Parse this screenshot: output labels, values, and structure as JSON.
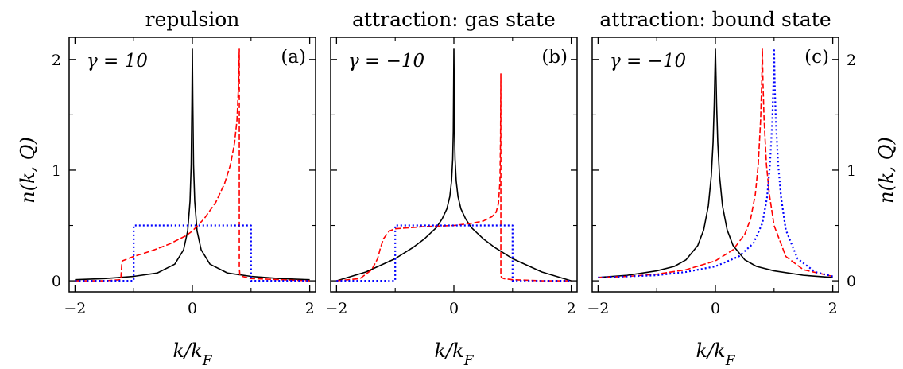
{
  "figure": {
    "ylabel": "n(k, Q)",
    "xlabel": "k/k_F"
  },
  "chart_data": [
    {
      "type": "line",
      "title": "repulsion",
      "panel_label": "(a)",
      "annotation": "γ = 10",
      "xlabel": "k/k_F",
      "ylabel": "n(k, Q)",
      "xlim": [
        -2.1,
        2.1
      ],
      "ylim": [
        -0.1,
        2.2
      ],
      "xticks": [
        -2,
        0,
        2
      ],
      "yticks": [
        0,
        1,
        2
      ],
      "grid": false,
      "series": [
        {
          "style": "solid",
          "color": "#000000",
          "x": [
            -2.0,
            -1.5,
            -1.0,
            -0.6,
            -0.3,
            -0.15,
            -0.08,
            -0.04,
            -0.02,
            -0.008,
            0.0,
            0.008,
            0.02,
            0.04,
            0.08,
            0.15,
            0.3,
            0.6,
            1.0,
            1.5,
            2.0
          ],
          "y": [
            0.01,
            0.02,
            0.04,
            0.07,
            0.15,
            0.28,
            0.45,
            0.72,
            1.05,
            1.6,
            2.1,
            1.6,
            1.05,
            0.72,
            0.45,
            0.28,
            0.15,
            0.07,
            0.04,
            0.02,
            0.01
          ]
        },
        {
          "style": "dashed",
          "color": "#ff0000",
          "x": [
            -2.0,
            -1.5,
            -1.22,
            -1.2,
            -1.19,
            -1.0,
            -0.7,
            -0.4,
            -0.1,
            0.0,
            0.2,
            0.4,
            0.55,
            0.65,
            0.72,
            0.76,
            0.79,
            0.8,
            0.8,
            0.81,
            0.85,
            1.0,
            1.5,
            2.0
          ],
          "y": [
            0.0,
            0.0,
            0.01,
            0.17,
            0.18,
            0.22,
            0.27,
            0.33,
            0.41,
            0.45,
            0.56,
            0.71,
            0.88,
            1.05,
            1.25,
            1.45,
            1.8,
            2.1,
            0.12,
            0.05,
            0.04,
            0.02,
            0.01,
            0.0
          ]
        },
        {
          "style": "dotted",
          "color": "#0000ff",
          "x": [
            -2.0,
            -1.0,
            -1.0,
            1.0,
            1.0,
            2.0
          ],
          "y": [
            0.0,
            0.0,
            0.5,
            0.5,
            0.0,
            0.0
          ]
        }
      ]
    },
    {
      "type": "line",
      "title": "attraction: gas state",
      "panel_label": "(b)",
      "annotation": "γ = −10",
      "xlabel": "k/k_F",
      "ylabel": "n(k, Q)",
      "xlim": [
        -2.1,
        2.1
      ],
      "ylim": [
        -0.1,
        2.2
      ],
      "xticks": [
        -2,
        0,
        2
      ],
      "yticks": [
        0,
        1,
        2
      ],
      "grid": false,
      "series": [
        {
          "style": "solid",
          "color": "#000000",
          "x": [
            -2.0,
            -1.5,
            -1.0,
            -0.7,
            -0.5,
            -0.3,
            -0.2,
            -0.12,
            -0.07,
            -0.04,
            -0.02,
            -0.01,
            0.0,
            0.01,
            0.02,
            0.04,
            0.07,
            0.12,
            0.2,
            0.3,
            0.5,
            0.7,
            1.0,
            1.5,
            2.0
          ],
          "y": [
            0.0,
            0.08,
            0.2,
            0.3,
            0.38,
            0.48,
            0.56,
            0.65,
            0.76,
            0.9,
            1.1,
            1.35,
            2.1,
            1.35,
            1.1,
            0.9,
            0.76,
            0.65,
            0.56,
            0.48,
            0.38,
            0.3,
            0.2,
            0.08,
            0.0
          ]
        },
        {
          "style": "dashed",
          "color": "#ff0000",
          "x": [
            -2.0,
            -1.6,
            -1.4,
            -1.3,
            -1.25,
            -1.2,
            -1.1,
            -1.0,
            -0.5,
            0.0,
            0.3,
            0.5,
            0.65,
            0.72,
            0.76,
            0.785,
            0.795,
            0.8,
            0.8,
            0.81,
            0.85,
            1.0,
            1.5,
            2.0
          ],
          "y": [
            0.0,
            0.02,
            0.1,
            0.2,
            0.3,
            0.38,
            0.45,
            0.47,
            0.49,
            0.5,
            0.52,
            0.54,
            0.58,
            0.62,
            0.7,
            0.9,
            1.3,
            1.87,
            0.05,
            0.03,
            0.02,
            0.01,
            0.0,
            0.0
          ]
        },
        {
          "style": "dotted",
          "color": "#0000ff",
          "x": [
            -2.0,
            -1.0,
            -1.0,
            1.0,
            1.0,
            2.0
          ],
          "y": [
            0.0,
            0.0,
            0.5,
            0.5,
            0.0,
            0.0
          ]
        }
      ]
    },
    {
      "type": "line",
      "title": "attraction: bound state",
      "panel_label": "(c)",
      "annotation": "γ = −10",
      "xlabel": "k/k_F",
      "ylabel": "n(k, Q)",
      "xlim": [
        -2.1,
        2.1
      ],
      "ylim": [
        -0.1,
        2.2
      ],
      "xticks": [
        -2,
        0,
        2
      ],
      "yticks": [
        0,
        1,
        2
      ],
      "grid": false,
      "series": [
        {
          "style": "solid",
          "color": "#000000",
          "x": [
            -2.0,
            -1.5,
            -1.0,
            -0.7,
            -0.5,
            -0.3,
            -0.2,
            -0.12,
            -0.07,
            -0.04,
            -0.02,
            -0.01,
            0.0,
            0.01,
            0.02,
            0.04,
            0.07,
            0.12,
            0.2,
            0.3,
            0.5,
            0.7,
            1.0,
            1.5,
            2.0
          ],
          "y": [
            0.03,
            0.05,
            0.09,
            0.13,
            0.19,
            0.32,
            0.46,
            0.68,
            0.95,
            1.25,
            1.6,
            1.85,
            2.1,
            1.85,
            1.6,
            1.25,
            0.95,
            0.68,
            0.46,
            0.32,
            0.19,
            0.13,
            0.09,
            0.05,
            0.03
          ]
        },
        {
          "style": "dashed",
          "color": "#ff0000",
          "x": [
            -2.0,
            -1.5,
            -1.0,
            -0.5,
            0.0,
            0.3,
            0.5,
            0.6,
            0.68,
            0.73,
            0.77,
            0.79,
            0.8,
            0.81,
            0.83,
            0.87,
            0.92,
            1.0,
            1.2,
            1.5,
            2.0
          ],
          "y": [
            0.03,
            0.04,
            0.06,
            0.1,
            0.18,
            0.28,
            0.42,
            0.56,
            0.78,
            1.05,
            1.45,
            1.8,
            2.1,
            1.8,
            1.45,
            1.05,
            0.78,
            0.5,
            0.22,
            0.1,
            0.04
          ]
        },
        {
          "style": "dotted",
          "color": "#0000ff",
          "x": [
            -2.0,
            -1.5,
            -1.0,
            -0.5,
            0.0,
            0.4,
            0.65,
            0.8,
            0.88,
            0.93,
            0.97,
            0.99,
            1.0,
            1.01,
            1.03,
            1.07,
            1.12,
            1.2,
            1.4,
            1.7,
            2.0
          ],
          "y": [
            0.03,
            0.04,
            0.05,
            0.08,
            0.13,
            0.22,
            0.34,
            0.52,
            0.75,
            1.05,
            1.45,
            1.8,
            2.1,
            1.8,
            1.45,
            1.05,
            0.75,
            0.46,
            0.2,
            0.08,
            0.04
          ]
        }
      ]
    }
  ]
}
